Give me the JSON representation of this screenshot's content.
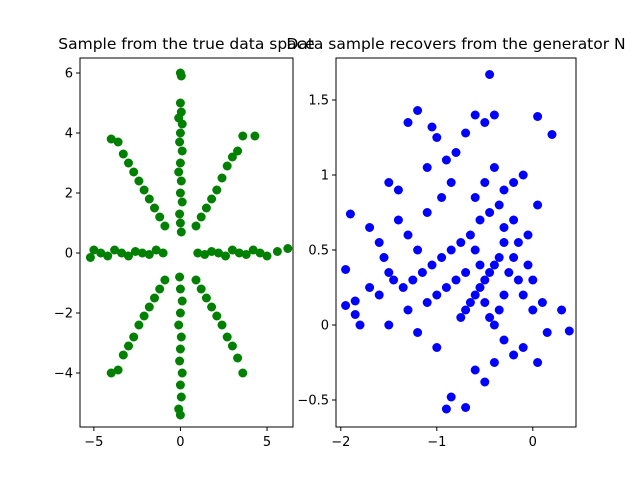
{
  "chart_data": [
    {
      "type": "scatter",
      "title": "Sample from the true data space",
      "xlabel": "",
      "ylabel": "",
      "xlim": [
        -5.8,
        6.5
      ],
      "ylim": [
        -5.8,
        6.5
      ],
      "xticks": [
        -5,
        0,
        5
      ],
      "yticks": [
        -4,
        -2,
        0,
        2,
        4,
        6
      ],
      "grid": false,
      "marker_color": "#008000",
      "distribution": "eight radial arms at 45-degree intervals from the origin, points spread along each arm out to radius about 4.3-6",
      "series": [
        {
          "points": [
            [
              0.0,
              6.0
            ],
            [
              0.05,
              5.9
            ],
            [
              0.0,
              5.0
            ],
            [
              0.05,
              4.7
            ],
            [
              -0.1,
              4.5
            ],
            [
              0.1,
              4.3
            ],
            [
              0.0,
              4.0
            ],
            [
              -0.05,
              3.7
            ],
            [
              0.1,
              3.4
            ],
            [
              0.0,
              3.0
            ],
            [
              -0.1,
              2.7
            ],
            [
              0.05,
              2.4
            ],
            [
              0.0,
              2.0
            ],
            [
              0.1,
              1.7
            ],
            [
              -0.05,
              1.3
            ],
            [
              0.0,
              1.0
            ],
            [
              0.05,
              0.7
            ],
            [
              3.6,
              3.9
            ],
            [
              3.3,
              3.4
            ],
            [
              3.0,
              3.2
            ],
            [
              2.7,
              2.9
            ],
            [
              2.4,
              2.5
            ],
            [
              2.1,
              2.1
            ],
            [
              1.8,
              1.8
            ],
            [
              1.5,
              1.5
            ],
            [
              1.2,
              1.2
            ],
            [
              0.9,
              0.9
            ],
            [
              4.3,
              3.9
            ],
            [
              6.2,
              0.15
            ],
            [
              5.6,
              0.05
            ],
            [
              5.0,
              -0.1
            ],
            [
              4.6,
              0.0
            ],
            [
              4.2,
              0.1
            ],
            [
              3.8,
              -0.05
            ],
            [
              3.4,
              0.0
            ],
            [
              3.0,
              0.1
            ],
            [
              2.6,
              -0.1
            ],
            [
              2.2,
              0.0
            ],
            [
              1.8,
              0.05
            ],
            [
              1.4,
              -0.05
            ],
            [
              1.0,
              0.0
            ],
            [
              3.6,
              -4.0
            ],
            [
              3.3,
              -3.5
            ],
            [
              3.0,
              -3.1
            ],
            [
              2.7,
              -2.8
            ],
            [
              2.4,
              -2.4
            ],
            [
              2.1,
              -2.1
            ],
            [
              1.8,
              -1.8
            ],
            [
              1.5,
              -1.5
            ],
            [
              1.2,
              -1.2
            ],
            [
              0.9,
              -0.9
            ],
            [
              0.0,
              -5.4
            ],
            [
              -0.1,
              -5.2
            ],
            [
              0.05,
              -4.8
            ],
            [
              0.0,
              -4.4
            ],
            [
              0.1,
              -4.0
            ],
            [
              -0.05,
              -3.6
            ],
            [
              0.0,
              -3.2
            ],
            [
              0.05,
              -2.8
            ],
            [
              -0.1,
              -2.4
            ],
            [
              0.0,
              -2.0
            ],
            [
              0.1,
              -1.6
            ],
            [
              0.0,
              -1.2
            ],
            [
              -0.05,
              -0.8
            ],
            [
              -4.0,
              -4.0
            ],
            [
              -3.6,
              -3.9
            ],
            [
              -3.3,
              -3.4
            ],
            [
              -3.0,
              -3.1
            ],
            [
              -2.7,
              -2.8
            ],
            [
              -2.4,
              -2.4
            ],
            [
              -2.1,
              -2.1
            ],
            [
              -1.8,
              -1.8
            ],
            [
              -1.5,
              -1.5
            ],
            [
              -1.2,
              -1.2
            ],
            [
              -0.9,
              -0.9
            ],
            [
              -5.2,
              -0.15
            ],
            [
              -5.0,
              0.1
            ],
            [
              -4.6,
              0.0
            ],
            [
              -4.2,
              -0.1
            ],
            [
              -3.8,
              0.1
            ],
            [
              -3.4,
              0.0
            ],
            [
              -3.0,
              -0.1
            ],
            [
              -2.6,
              0.05
            ],
            [
              -2.2,
              0.0
            ],
            [
              -1.8,
              -0.05
            ],
            [
              -1.4,
              0.1
            ],
            [
              -1.0,
              0.0
            ],
            [
              -4.0,
              3.8
            ],
            [
              -3.6,
              3.7
            ],
            [
              -3.3,
              3.3
            ],
            [
              -3.0,
              3.0
            ],
            [
              -2.7,
              2.7
            ],
            [
              -2.4,
              2.4
            ],
            [
              -2.1,
              2.1
            ],
            [
              -1.8,
              1.8
            ],
            [
              -1.5,
              1.5
            ],
            [
              -1.2,
              1.2
            ],
            [
              -0.9,
              0.9
            ]
          ]
        }
      ]
    },
    {
      "type": "scatter",
      "title": "Data sample recovers from the generator N",
      "xlabel": "",
      "ylabel": "",
      "xlim": [
        -2.05,
        0.45
      ],
      "ylim": [
        -0.68,
        1.78
      ],
      "xticks": [
        -2,
        -1,
        0
      ],
      "yticks": [
        -0.5,
        0.0,
        0.5,
        1.0,
        1.5
      ],
      "grid": false,
      "marker_color": "#0000ff",
      "distribution": "single dense cloud centred near (-0.45, 0.35)",
      "series": [
        {
          "points": [
            [
              -0.45,
              1.67
            ],
            [
              -1.2,
              1.43
            ],
            [
              -1.3,
              1.35
            ],
            [
              -0.6,
              1.4
            ],
            [
              -0.5,
              1.35
            ],
            [
              -0.4,
              1.4
            ],
            [
              0.05,
              1.39
            ],
            [
              0.2,
              1.27
            ],
            [
              -1.05,
              1.32
            ],
            [
              -1.0,
              1.25
            ],
            [
              -0.7,
              1.28
            ],
            [
              -0.8,
              1.15
            ],
            [
              -0.9,
              1.1
            ],
            [
              -1.1,
              1.05
            ],
            [
              -1.5,
              0.95
            ],
            [
              -1.4,
              0.9
            ],
            [
              -1.9,
              0.74
            ],
            [
              -1.7,
              0.65
            ],
            [
              -1.6,
              0.55
            ],
            [
              -1.55,
              0.45
            ],
            [
              -1.5,
              0.35
            ],
            [
              -1.45,
              0.3
            ],
            [
              -1.6,
              0.2
            ],
            [
              -1.7,
              0.25
            ],
            [
              -1.95,
              0.37
            ],
            [
              -1.95,
              0.13
            ],
            [
              -1.85,
              0.16
            ],
            [
              -1.85,
              0.07
            ],
            [
              -1.8,
              0.0
            ],
            [
              -1.5,
              0.0
            ],
            [
              -1.3,
              0.1
            ],
            [
              -1.2,
              -0.05
            ],
            [
              -1.0,
              -0.15
            ],
            [
              -0.9,
              -0.56
            ],
            [
              -0.85,
              -0.48
            ],
            [
              -0.7,
              -0.55
            ],
            [
              -0.6,
              -0.3
            ],
            [
              -0.5,
              -0.38
            ],
            [
              -0.4,
              -0.25
            ],
            [
              -0.3,
              -0.1
            ],
            [
              -0.2,
              -0.2
            ],
            [
              -0.1,
              -0.15
            ],
            [
              0.05,
              -0.25
            ],
            [
              0.15,
              -0.05
            ],
            [
              0.3,
              0.1
            ],
            [
              0.38,
              -0.04
            ],
            [
              0.1,
              0.15
            ],
            [
              0.0,
              0.3
            ],
            [
              -0.05,
              0.6
            ],
            [
              0.05,
              0.8
            ],
            [
              -0.1,
              1.0
            ],
            [
              -0.2,
              0.95
            ],
            [
              -0.3,
              0.9
            ],
            [
              -0.35,
              0.8
            ],
            [
              -0.45,
              0.75
            ],
            [
              -0.55,
              0.7
            ],
            [
              -0.65,
              0.6
            ],
            [
              -0.75,
              0.55
            ],
            [
              -0.85,
              0.5
            ],
            [
              -0.95,
              0.45
            ],
            [
              -1.05,
              0.4
            ],
            [
              -1.15,
              0.35
            ],
            [
              -1.25,
              0.3
            ],
            [
              -1.35,
              0.25
            ],
            [
              -0.3,
              0.55
            ],
            [
              -0.35,
              0.45
            ],
            [
              -0.4,
              0.4
            ],
            [
              -0.45,
              0.35
            ],
            [
              -0.5,
              0.3
            ],
            [
              -0.55,
              0.25
            ],
            [
              -0.6,
              0.2
            ],
            [
              -0.65,
              0.15
            ],
            [
              -0.7,
              0.1
            ],
            [
              -0.75,
              0.05
            ],
            [
              -0.25,
              0.35
            ],
            [
              -0.2,
              0.45
            ],
            [
              -0.15,
              0.3
            ],
            [
              -0.1,
              0.2
            ],
            [
              -0.3,
              0.2
            ],
            [
              -0.35,
              0.1
            ],
            [
              -0.4,
              0.0
            ],
            [
              -0.45,
              0.05
            ],
            [
              -0.5,
              0.15
            ],
            [
              -0.55,
              0.4
            ],
            [
              -0.6,
              0.5
            ],
            [
              -0.7,
              0.35
            ],
            [
              -0.8,
              0.3
            ],
            [
              -0.9,
              0.25
            ],
            [
              -1.0,
              0.2
            ],
            [
              -1.1,
              0.15
            ],
            [
              -1.2,
              0.5
            ],
            [
              -1.3,
              0.6
            ],
            [
              -1.4,
              0.7
            ],
            [
              -1.1,
              0.75
            ],
            [
              -0.95,
              0.85
            ],
            [
              -0.85,
              0.95
            ],
            [
              -0.6,
              0.85
            ],
            [
              -0.5,
              0.95
            ],
            [
              -0.4,
              1.05
            ],
            [
              -0.3,
              0.65
            ],
            [
              -0.2,
              0.7
            ],
            [
              -0.15,
              0.55
            ],
            [
              -0.05,
              0.4
            ],
            [
              0.0,
              0.1
            ]
          ]
        }
      ]
    }
  ]
}
